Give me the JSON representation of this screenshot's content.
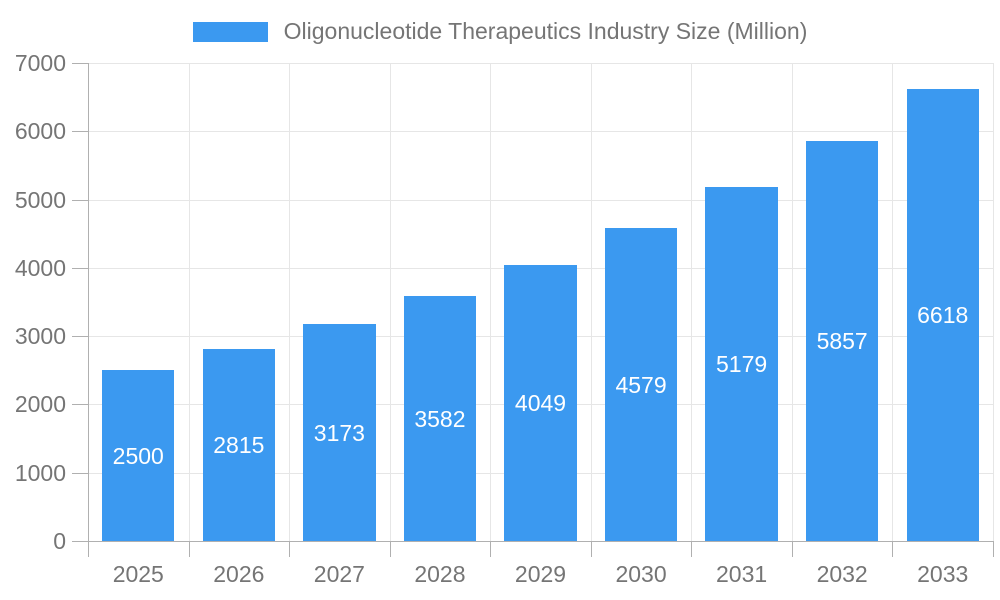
{
  "legend": {
    "label": "Oligonucleotide Therapeutics Industry Size (Million)"
  },
  "chart_data": {
    "type": "bar",
    "title": "Oligonucleotide Therapeutics Industry Size (Million)",
    "categories": [
      "2025",
      "2026",
      "2027",
      "2028",
      "2029",
      "2030",
      "2031",
      "2032",
      "2033"
    ],
    "values": [
      2500,
      2815,
      3173,
      3582,
      4049,
      4579,
      5179,
      5857,
      6618
    ],
    "xlabel": "",
    "ylabel": "",
    "ylim": [
      0,
      7000
    ],
    "ytick_step": 1000,
    "ytick_labels": [
      "0",
      "1000",
      "2000",
      "3000",
      "4000",
      "5000",
      "6000",
      "7000"
    ],
    "grid": true,
    "legend_position": "top-center",
    "bar_label_position": "inside-center",
    "bar_label_color": "#ffffff",
    "colors": {
      "bar": "#3b99f0",
      "grid": "#e6e6e6",
      "axis": "#b0b0b0",
      "text": "#757575"
    }
  }
}
